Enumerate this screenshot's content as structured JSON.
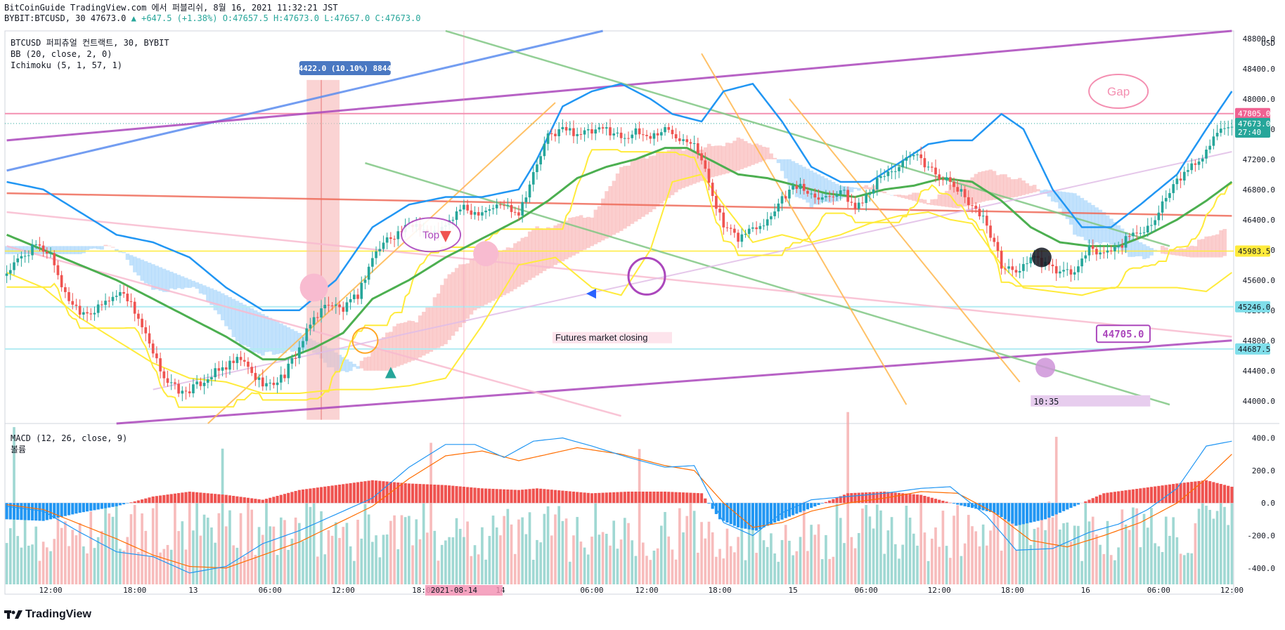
{
  "header": {
    "line1": "BitCoinGuide TradingView.com 에서 퍼블리쉬, 8월 16, 2021 11:32:21 JST",
    "symbol": "BYBIT:BTCUSD, 30",
    "price": "47673.0",
    "change": "▲ +647.5 (+1.38%)",
    "ohlc": "O:47657.5 H:47673.0 L:47657.0 C:47673.0"
  },
  "legend": {
    "main": "BTCUSD 퍼피츄얼 컨트랙트, 30, BYBIT",
    "bb": "BB (20, close, 2, 0)",
    "ichimoku": "Ichimoku (5, 1, 57, 1)"
  },
  "macd_legend": {
    "macd": "MACD (12, 26, close, 9)",
    "volume": "볼륨"
  },
  "footer": {
    "brand": "TradingView"
  },
  "colors": {
    "up": "#26a69a",
    "down": "#ef5350",
    "bb": "#2196f3",
    "kijun": "#4caf50",
    "tenkan": "#ffeb3b",
    "cloud_up": "#f8a5a5",
    "cloud_down": "#90caf9",
    "macd_line": "#2196f3",
    "signal_line": "#ff6d00"
  },
  "chart_data": [
    {
      "type": "candlestick",
      "title": "",
      "y_axis_unit": "USD",
      "ylim": [
        43700,
        48900
      ],
      "y_ticks": [
        44000,
        44400,
        44800,
        45200,
        45600,
        46000,
        46400,
        46800,
        47200,
        47600,
        48000,
        48400,
        48800
      ],
      "x_ticks": [
        "12:00",
        "18:00",
        "13",
        "06:00",
        "12:00",
        "18:00",
        "14",
        "06:00",
        "12:00",
        "18:00",
        "15",
        "06:00",
        "12:00",
        "18:00",
        "16",
        "06:00",
        "12:00"
      ],
      "cursor_date": "2021-08-14",
      "price_labels": [
        {
          "value": "47805.0",
          "color": "#f06292"
        },
        {
          "value": "47673.0",
          "color": "#26a69a"
        },
        {
          "value": "27:40",
          "color": "#26a69a"
        },
        {
          "value": "45983.5",
          "color": "#ffeb3b"
        },
        {
          "value": "45246.0",
          "color": "#80deea"
        },
        {
          "value": "44687.5",
          "color": "#80deea"
        }
      ],
      "close_path": [
        [
          0,
          45700
        ],
        [
          4,
          45900
        ],
        [
          8,
          46050
        ],
        [
          12,
          45950
        ],
        [
          16,
          45400
        ],
        [
          20,
          45200
        ],
        [
          24,
          45180
        ],
        [
          28,
          45350
        ],
        [
          32,
          45450
        ],
        [
          36,
          45100
        ],
        [
          40,
          44600
        ],
        [
          44,
          44250
        ],
        [
          48,
          44100
        ],
        [
          52,
          44200
        ],
        [
          56,
          44350
        ],
        [
          60,
          44450
        ],
        [
          64,
          44550
        ],
        [
          68,
          44300
        ],
        [
          72,
          44200
        ],
        [
          76,
          44350
        ],
        [
          80,
          44700
        ],
        [
          84,
          45100
        ],
        [
          88,
          45300
        ],
        [
          92,
          45200
        ],
        [
          96,
          45400
        ],
        [
          100,
          45900
        ],
        [
          104,
          46150
        ],
        [
          108,
          46250
        ],
        [
          112,
          46350
        ],
        [
          116,
          46200
        ],
        [
          120,
          46300
        ],
        [
          124,
          46550
        ],
        [
          128,
          46500
        ],
        [
          132,
          46550
        ],
        [
          136,
          46600
        ],
        [
          140,
          46500
        ],
        [
          144,
          47000
        ],
        [
          148,
          47500
        ],
        [
          152,
          47600
        ],
        [
          156,
          47550
        ],
        [
          160,
          47550
        ],
        [
          164,
          47600
        ],
        [
          168,
          47500
        ],
        [
          172,
          47550
        ],
        [
          176,
          47500
        ],
        [
          180,
          47600
        ],
        [
          184,
          47500
        ],
        [
          188,
          47450
        ],
        [
          192,
          46900
        ],
        [
          196,
          46300
        ],
        [
          200,
          46150
        ],
        [
          204,
          46300
        ],
        [
          208,
          46400
        ],
        [
          212,
          46700
        ],
        [
          216,
          46850
        ],
        [
          220,
          46750
        ],
        [
          224,
          46700
        ],
        [
          228,
          46800
        ],
        [
          232,
          46550
        ],
        [
          236,
          46800
        ],
        [
          240,
          47000
        ],
        [
          244,
          47100
        ],
        [
          248,
          47250
        ],
        [
          252,
          47100
        ],
        [
          256,
          46950
        ],
        [
          260,
          46800
        ],
        [
          264,
          46600
        ],
        [
          268,
          46350
        ],
        [
          272,
          45800
        ],
        [
          276,
          45700
        ],
        [
          280,
          45900
        ],
        [
          284,
          45800
        ],
        [
          288,
          45700
        ],
        [
          292,
          45700
        ],
        [
          296,
          46000
        ],
        [
          300,
          45950
        ],
        [
          304,
          46050
        ],
        [
          308,
          46200
        ],
        [
          312,
          46300
        ],
        [
          316,
          46600
        ],
        [
          320,
          46900
        ],
        [
          324,
          47100
        ],
        [
          328,
          47300
        ],
        [
          332,
          47650
        ],
        [
          335,
          47673
        ]
      ],
      "bb_upper": [
        [
          0,
          46900
        ],
        [
          10,
          46800
        ],
        [
          20,
          46500
        ],
        [
          30,
          46200
        ],
        [
          40,
          46100
        ],
        [
          50,
          45900
        ],
        [
          60,
          45500
        ],
        [
          70,
          45200
        ],
        [
          80,
          45200
        ],
        [
          90,
          45600
        ],
        [
          100,
          46300
        ],
        [
          110,
          46600
        ],
        [
          120,
          46700
        ],
        [
          130,
          46700
        ],
        [
          140,
          46800
        ],
        [
          145,
          47200
        ],
        [
          152,
          47900
        ],
        [
          160,
          48100
        ],
        [
          168,
          48200
        ],
        [
          176,
          48000
        ],
        [
          182,
          47800
        ],
        [
          190,
          47700
        ],
        [
          196,
          48100
        ],
        [
          204,
          48200
        ],
        [
          212,
          47700
        ],
        [
          220,
          47100
        ],
        [
          228,
          46900
        ],
        [
          236,
          46900
        ],
        [
          244,
          47150
        ],
        [
          252,
          47400
        ],
        [
          258,
          47450
        ],
        [
          264,
          47450
        ],
        [
          272,
          47800
        ],
        [
          278,
          47600
        ],
        [
          286,
          46800
        ],
        [
          294,
          46300
        ],
        [
          302,
          46300
        ],
        [
          310,
          46600
        ],
        [
          320,
          47000
        ],
        [
          328,
          47600
        ],
        [
          335,
          48100
        ]
      ],
      "bb_lower": [
        [
          0,
          45700
        ],
        [
          10,
          45500
        ],
        [
          20,
          45100
        ],
        [
          30,
          44800
        ],
        [
          40,
          44500
        ],
        [
          50,
          44300
        ],
        [
          60,
          44250
        ],
        [
          70,
          44100
        ],
        [
          80,
          44100
        ],
        [
          90,
          44150
        ],
        [
          100,
          44150
        ],
        [
          110,
          44200
        ],
        [
          120,
          44300
        ],
        [
          130,
          45000
        ],
        [
          140,
          45800
        ],
        [
          150,
          45900
        ],
        [
          160,
          45500
        ],
        [
          168,
          45400
        ],
        [
          176,
          46000
        ],
        [
          182,
          46900
        ],
        [
          190,
          47000
        ],
        [
          196,
          46600
        ],
        [
          204,
          46100
        ],
        [
          212,
          46200
        ],
        [
          220,
          46100
        ],
        [
          228,
          46200
        ],
        [
          236,
          46350
        ],
        [
          244,
          46450
        ],
        [
          252,
          46500
        ],
        [
          258,
          46400
        ],
        [
          264,
          46350
        ],
        [
          272,
          45800
        ],
        [
          278,
          45500
        ],
        [
          286,
          45450
        ],
        [
          294,
          45400
        ],
        [
          302,
          45500
        ],
        [
          310,
          45500
        ],
        [
          320,
          45500
        ],
        [
          328,
          45450
        ],
        [
          335,
          45700
        ]
      ],
      "kijun_basis": [
        [
          0,
          46200
        ],
        [
          10,
          46000
        ],
        [
          20,
          45800
        ],
        [
          30,
          45600
        ],
        [
          40,
          45350
        ],
        [
          50,
          45100
        ],
        [
          60,
          44850
        ],
        [
          70,
          44550
        ],
        [
          76,
          44550
        ],
        [
          84,
          44700
        ],
        [
          92,
          44900
        ],
        [
          100,
          45350
        ],
        [
          110,
          45600
        ],
        [
          120,
          45900
        ],
        [
          130,
          46150
        ],
        [
          140,
          46400
        ],
        [
          148,
          46650
        ],
        [
          156,
          46950
        ],
        [
          164,
          47100
        ],
        [
          172,
          47200
        ],
        [
          180,
          47350
        ],
        [
          186,
          47350
        ],
        [
          192,
          47200
        ],
        [
          200,
          47000
        ],
        [
          208,
          46950
        ],
        [
          216,
          46850
        ],
        [
          224,
          46750
        ],
        [
          232,
          46700
        ],
        [
          240,
          46800
        ],
        [
          248,
          46850
        ],
        [
          256,
          46950
        ],
        [
          264,
          46900
        ],
        [
          272,
          46650
        ],
        [
          280,
          46300
        ],
        [
          288,
          46100
        ],
        [
          296,
          46050
        ],
        [
          304,
          46050
        ],
        [
          312,
          46200
        ],
        [
          320,
          46400
        ],
        [
          328,
          46650
        ],
        [
          335,
          46900
        ]
      ],
      "annotations": [
        {
          "text": "4422.0 (10.10%) 8844",
          "kind": "measure"
        },
        {
          "text": "Top",
          "kind": "bubble"
        },
        {
          "text": "Gap",
          "kind": "bubble"
        },
        {
          "text": "44705.0",
          "kind": "callout"
        },
        {
          "text": "Futures market closing",
          "kind": "note"
        },
        {
          "text": "10:35",
          "kind": "note"
        }
      ]
    },
    {
      "type": "bar",
      "title": "MACD (12, 26, close, 9)",
      "ylim": [
        -500,
        480
      ],
      "y_ticks": [
        400.0,
        200.0,
        0.0,
        -200.0,
        -400.0
      ],
      "histogram_keys": [
        [
          0,
          -100
        ],
        [
          10,
          -110
        ],
        [
          20,
          -60
        ],
        [
          30,
          -20
        ],
        [
          40,
          40
        ],
        [
          50,
          70
        ],
        [
          60,
          50
        ],
        [
          70,
          20
        ],
        [
          80,
          80
        ],
        [
          90,
          110
        ],
        [
          100,
          140
        ],
        [
          110,
          120
        ],
        [
          120,
          110
        ],
        [
          130,
          90
        ],
        [
          140,
          80
        ],
        [
          145,
          90
        ],
        [
          150,
          80
        ],
        [
          160,
          60
        ],
        [
          170,
          70
        ],
        [
          180,
          70
        ],
        [
          190,
          60
        ],
        [
          195,
          -100
        ],
        [
          200,
          -150
        ],
        [
          205,
          -170
        ],
        [
          210,
          -120
        ],
        [
          220,
          -30
        ],
        [
          230,
          60
        ],
        [
          240,
          70
        ],
        [
          250,
          50
        ],
        [
          260,
          -10
        ],
        [
          270,
          -60
        ],
        [
          276,
          -140
        ],
        [
          284,
          -100
        ],
        [
          290,
          -40
        ],
        [
          300,
          60
        ],
        [
          310,
          90
        ],
        [
          320,
          120
        ],
        [
          328,
          140
        ],
        [
          335,
          100
        ]
      ],
      "macd_line": [
        [
          0,
          -20
        ],
        [
          10,
          -50
        ],
        [
          20,
          -180
        ],
        [
          30,
          -300
        ],
        [
          40,
          -330
        ],
        [
          50,
          -430
        ],
        [
          60,
          -390
        ],
        [
          70,
          -250
        ],
        [
          80,
          -170
        ],
        [
          90,
          -70
        ],
        [
          100,
          30
        ],
        [
          110,
          220
        ],
        [
          120,
          360
        ],
        [
          128,
          360
        ],
        [
          136,
          280
        ],
        [
          144,
          380
        ],
        [
          152,
          400
        ],
        [
          160,
          350
        ],
        [
          170,
          280
        ],
        [
          180,
          220
        ],
        [
          188,
          230
        ],
        [
          196,
          -120
        ],
        [
          204,
          -200
        ],
        [
          212,
          -60
        ],
        [
          220,
          20
        ],
        [
          230,
          40
        ],
        [
          240,
          60
        ],
        [
          250,
          90
        ],
        [
          258,
          100
        ],
        [
          268,
          -80
        ],
        [
          276,
          -290
        ],
        [
          286,
          -280
        ],
        [
          296,
          -180
        ],
        [
          304,
          -130
        ],
        [
          312,
          -40
        ],
        [
          320,
          90
        ],
        [
          328,
          350
        ],
        [
          335,
          380
        ]
      ],
      "signal_line": [
        [
          0,
          -10
        ],
        [
          10,
          -40
        ],
        [
          20,
          -130
        ],
        [
          30,
          -220
        ],
        [
          40,
          -320
        ],
        [
          50,
          -390
        ],
        [
          60,
          -400
        ],
        [
          70,
          -320
        ],
        [
          80,
          -240
        ],
        [
          90,
          -130
        ],
        [
          100,
          -20
        ],
        [
          110,
          150
        ],
        [
          120,
          290
        ],
        [
          130,
          320
        ],
        [
          140,
          260
        ],
        [
          148,
          300
        ],
        [
          156,
          340
        ],
        [
          168,
          300
        ],
        [
          180,
          230
        ],
        [
          188,
          200
        ],
        [
          196,
          0
        ],
        [
          204,
          -150
        ],
        [
          212,
          -120
        ],
        [
          220,
          -50
        ],
        [
          230,
          0
        ],
        [
          240,
          30
        ],
        [
          250,
          70
        ],
        [
          260,
          60
        ],
        [
          270,
          -60
        ],
        [
          280,
          -230
        ],
        [
          290,
          -270
        ],
        [
          300,
          -200
        ],
        [
          310,
          -120
        ],
        [
          320,
          0
        ],
        [
          328,
          150
        ],
        [
          335,
          300
        ]
      ]
    }
  ]
}
